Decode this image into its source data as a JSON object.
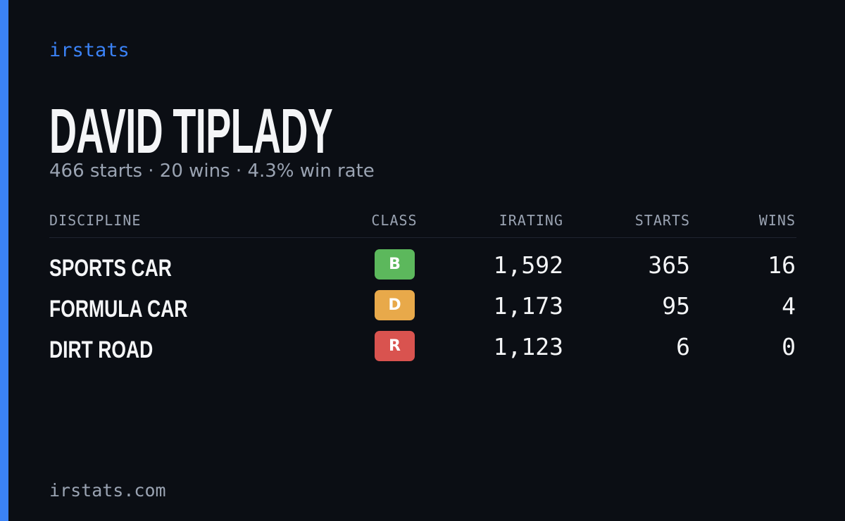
{
  "brand": "irstats",
  "title": "DAVID TIPLADY",
  "subtitle": "466 starts · 20 wins · 4.3% win rate",
  "table": {
    "headers": [
      "DISCIPLINE",
      "CLASS",
      "IRATING",
      "STARTS",
      "WINS"
    ],
    "rows": [
      {
        "discipline": "SPORTS CAR",
        "class": "B",
        "class_color": "#5cb85c",
        "irating": "1,592",
        "starts": "365",
        "wins": "16"
      },
      {
        "discipline": "FORMULA CAR",
        "class": "D",
        "class_color": "#e8a94a",
        "irating": "1,173",
        "starts": "95",
        "wins": "4"
      },
      {
        "discipline": "DIRT ROAD",
        "class": "R",
        "class_color": "#d9534f",
        "irating": "1,123",
        "starts": "6",
        "wins": "0"
      }
    ]
  },
  "footer": "irstats.com"
}
